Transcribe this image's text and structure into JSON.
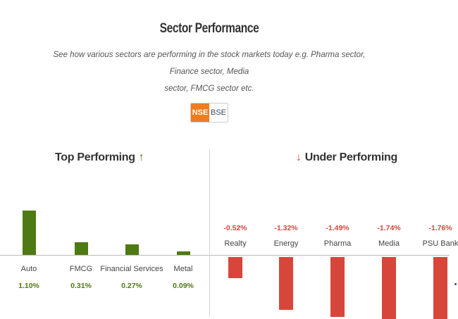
{
  "header": {
    "title": "Sector Performance",
    "subtitle_line1": "See how various sectors are performing in the stock markets today e.g. Pharma sector, Finance sector, Media",
    "subtitle_line2": "sector, FMCG sector etc."
  },
  "exchange_toggle": {
    "options": [
      "NSE",
      "BSE"
    ],
    "selected": "NSE"
  },
  "top_performing": {
    "heading": "Top Performing",
    "arrow": "↑"
  },
  "under_performing": {
    "heading": "Under Performing",
    "arrow": "↓"
  },
  "colors": {
    "positive": "#4e7a14",
    "negative": "#d7463a",
    "accent": "#f07c1e"
  },
  "chart_data": [
    {
      "type": "bar",
      "title": "Top Performing",
      "categories": [
        "Auto",
        "FMCG",
        "Financial Services",
        "Metal"
      ],
      "values": [
        1.1,
        0.31,
        0.27,
        0.09
      ],
      "labels": [
        "1.10%",
        "0.31%",
        "0.27%",
        "0.09%"
      ]
    },
    {
      "type": "bar",
      "title": "Under Performing",
      "categories": [
        "Realty",
        "Energy",
        "Pharma",
        "Media",
        "PSU Bank"
      ],
      "values": [
        -0.52,
        -1.32,
        -1.49,
        -1.74,
        -1.76
      ],
      "labels": [
        "-0.52%",
        "-1.32%",
        "-1.49%",
        "-1.74%",
        "-1.76%"
      ]
    }
  ]
}
